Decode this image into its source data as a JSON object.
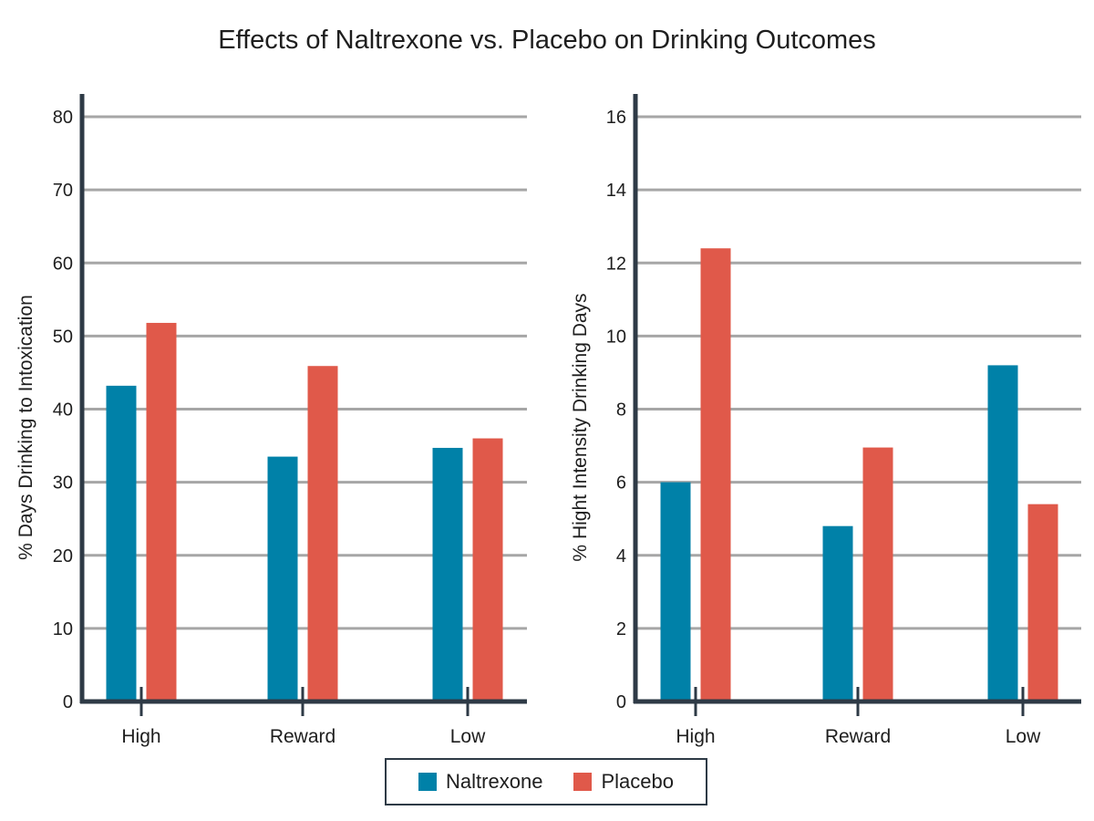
{
  "title": "Effects of Naltrexone vs. Placebo on Drinking Outcomes",
  "colors": {
    "naltrexone": "#0081a8",
    "placebo": "#e0594a",
    "axis": "#2e3a46",
    "grid": "#a6a6a6"
  },
  "legend": {
    "items": [
      {
        "label": "Naltrexone",
        "color": "#0081a8"
      },
      {
        "label": "Placebo",
        "color": "#e0594a"
      }
    ],
    "placement": "bottom-center"
  },
  "chart_data": [
    {
      "type": "bar",
      "ylabel": "% Days Drinking to Intoxication",
      "xlabel": "",
      "categories": [
        "High",
        "Reward",
        "Low"
      ],
      "ylim": [
        0,
        80
      ],
      "yticks": [
        0,
        10,
        20,
        30,
        40,
        50,
        60,
        70,
        80
      ],
      "grid": true,
      "series": [
        {
          "name": "Naltrexone",
          "values": [
            43.2,
            33.5,
            34.7
          ]
        },
        {
          "name": "Placebo",
          "values": [
            51.8,
            45.9,
            36.0
          ]
        }
      ]
    },
    {
      "type": "bar",
      "ylabel": "% Hight Intensity Drinking Days",
      "xlabel": "",
      "categories": [
        "High",
        "Reward",
        "Low"
      ],
      "ylim": [
        0,
        16
      ],
      "yticks": [
        0,
        2,
        4,
        6,
        8,
        10,
        12,
        14,
        16
      ],
      "grid": true,
      "series": [
        {
          "name": "Naltrexone",
          "values": [
            6.0,
            4.8,
            9.2
          ]
        },
        {
          "name": "Placebo",
          "values": [
            12.4,
            6.95,
            5.4
          ]
        }
      ]
    }
  ]
}
